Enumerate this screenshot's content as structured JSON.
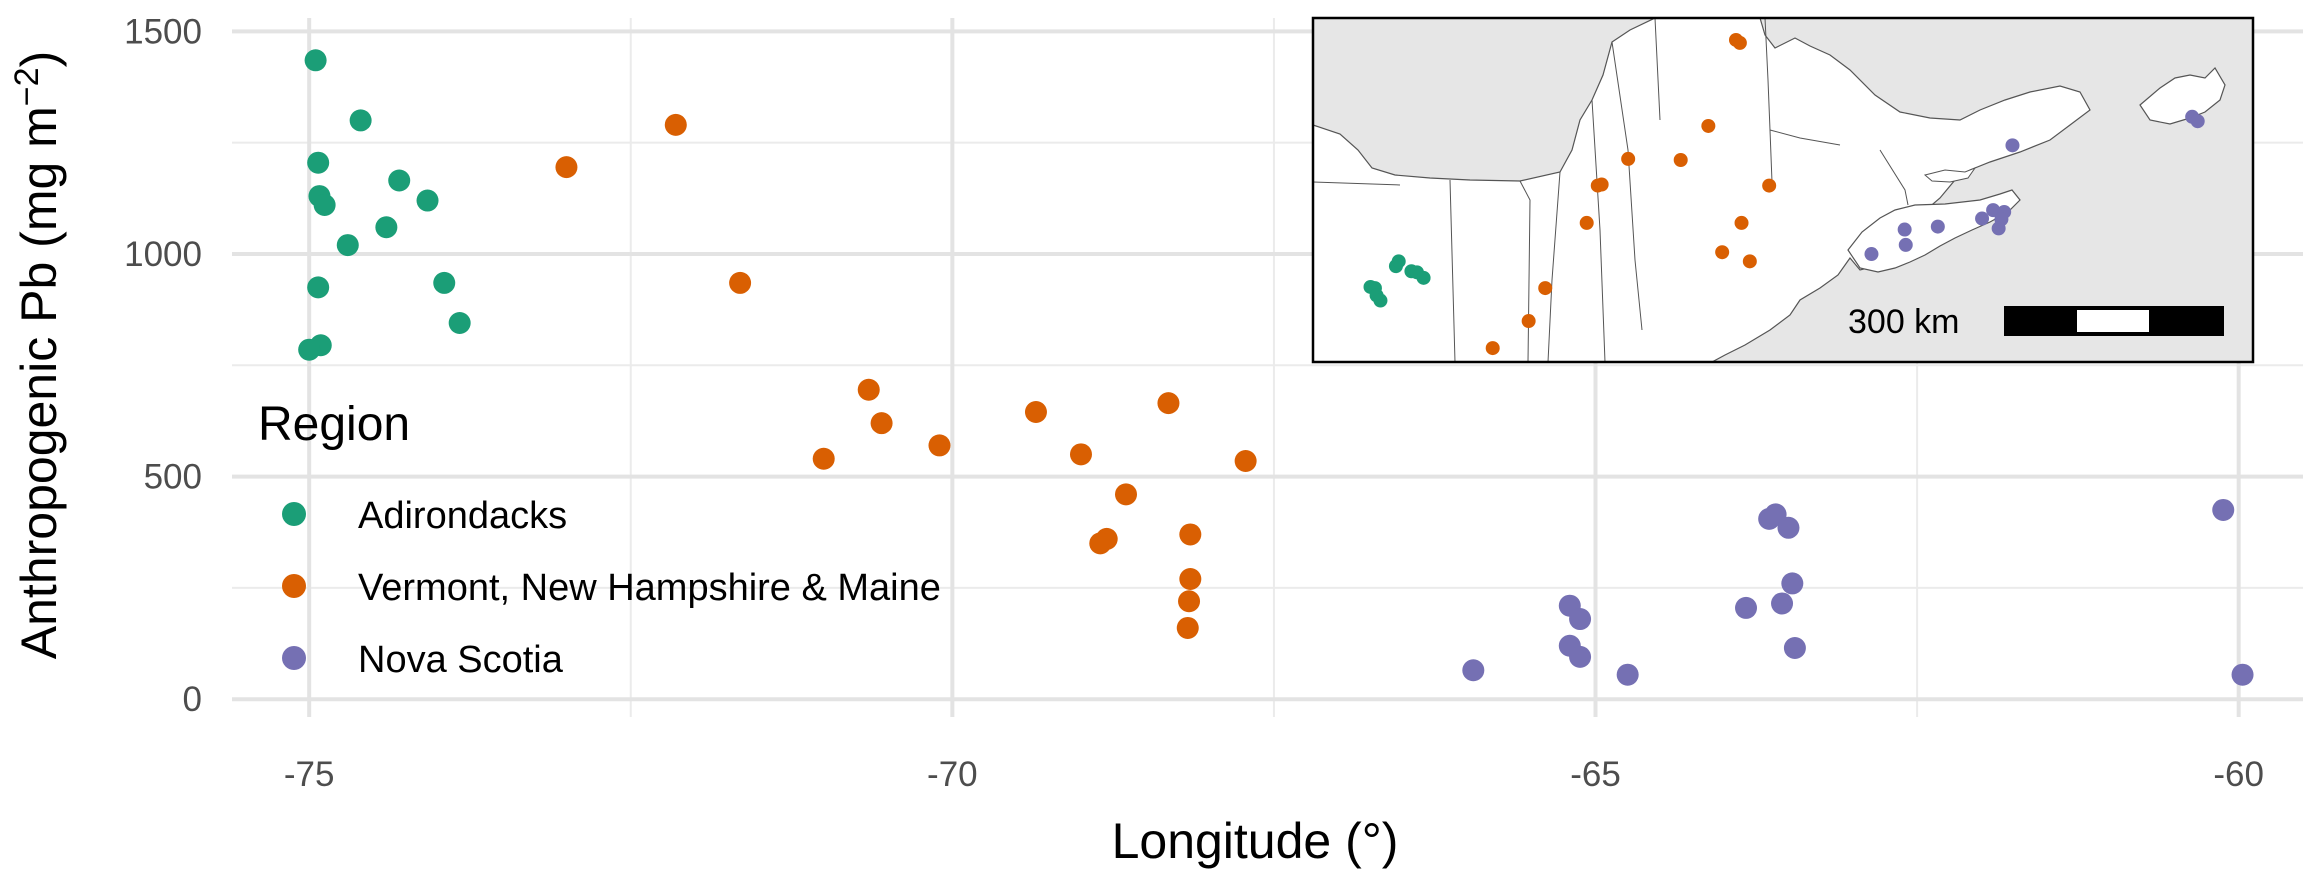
{
  "chart_data": {
    "type": "scatter",
    "title": "",
    "xlabel": "Longitude (°)",
    "ylabel": "Anthropogenic Pb (mg m",
    "ylabel_sup": "−2",
    "ylabel_close": ")",
    "xlim": [
      -75.6,
      -59.5
    ],
    "ylim": [
      -40,
      1530
    ],
    "xticks": [
      -75,
      -70,
      -65,
      -60
    ],
    "yticks": [
      0,
      500,
      1000,
      1500
    ],
    "grid": true,
    "legend": {
      "title": "Region",
      "position": "left-middle"
    },
    "series": [
      {
        "name": "Adirondacks",
        "color": "#1b9e77",
        "points": [
          {
            "x": -74.95,
            "y": 1435
          },
          {
            "x": -74.6,
            "y": 1300
          },
          {
            "x": -74.93,
            "y": 1205
          },
          {
            "x": -74.3,
            "y": 1165
          },
          {
            "x": -74.92,
            "y": 1130
          },
          {
            "x": -74.88,
            "y": 1110
          },
          {
            "x": -74.08,
            "y": 1120
          },
          {
            "x": -74.4,
            "y": 1060
          },
          {
            "x": -74.7,
            "y": 1020
          },
          {
            "x": -74.93,
            "y": 925
          },
          {
            "x": -73.95,
            "y": 935
          },
          {
            "x": -73.83,
            "y": 845
          },
          {
            "x": -74.91,
            "y": 795
          },
          {
            "x": -75.0,
            "y": 785
          }
        ]
      },
      {
        "name": "Vermont, New Hampshire & Maine",
        "color": "#d95f02",
        "points": [
          {
            "x": -72.15,
            "y": 1290
          },
          {
            "x": -73.0,
            "y": 1195
          },
          {
            "x": -71.65,
            "y": 935
          },
          {
            "x": -70.65,
            "y": 695
          },
          {
            "x": -70.55,
            "y": 620
          },
          {
            "x": -70.1,
            "y": 570
          },
          {
            "x": -71.0,
            "y": 540
          },
          {
            "x": -69.35,
            "y": 645
          },
          {
            "x": -69.0,
            "y": 550
          },
          {
            "x": -68.65,
            "y": 460
          },
          {
            "x": -68.32,
            "y": 665
          },
          {
            "x": -67.72,
            "y": 535
          },
          {
            "x": -68.8,
            "y": 360
          },
          {
            "x": -68.85,
            "y": 350
          },
          {
            "x": -68.15,
            "y": 370
          },
          {
            "x": -68.15,
            "y": 270
          },
          {
            "x": -68.16,
            "y": 220
          },
          {
            "x": -68.17,
            "y": 160
          }
        ]
      },
      {
        "name": "Nova Scotia",
        "color": "#7570b3",
        "points": [
          {
            "x": -65.95,
            "y": 65
          },
          {
            "x": -65.2,
            "y": 210
          },
          {
            "x": -65.12,
            "y": 180
          },
          {
            "x": -65.2,
            "y": 120
          },
          {
            "x": -65.12,
            "y": 95
          },
          {
            "x": -64.75,
            "y": 55
          },
          {
            "x": -63.65,
            "y": 405
          },
          {
            "x": -63.6,
            "y": 415
          },
          {
            "x": -63.5,
            "y": 385
          },
          {
            "x": -63.83,
            "y": 205
          },
          {
            "x": -63.55,
            "y": 215
          },
          {
            "x": -63.47,
            "y": 260
          },
          {
            "x": -63.45,
            "y": 115
          },
          {
            "x": -60.12,
            "y": 425
          },
          {
            "x": -59.97,
            "y": 55
          }
        ]
      }
    ],
    "inset": {
      "type": "map",
      "scale_label": "300 km",
      "points": [
        {
          "lon": -74.96,
          "lat": 44.85,
          "series": 0
        },
        {
          "lon": -74.88,
          "lat": 44.82,
          "series": 0
        },
        {
          "lon": -74.85,
          "lat": 44.62,
          "series": 0
        },
        {
          "lon": -74.78,
          "lat": 44.48,
          "series": 0
        },
        {
          "lon": -74.5,
          "lat": 45.42,
          "series": 0
        },
        {
          "lon": -74.45,
          "lat": 45.55,
          "series": 0
        },
        {
          "lon": -74.22,
          "lat": 45.28,
          "series": 0
        },
        {
          "lon": -74.12,
          "lat": 45.25,
          "series": 0
        },
        {
          "lon": -74.0,
          "lat": 45.1,
          "series": 0
        },
        {
          "lon": -72.75,
          "lat": 43.18,
          "series": 1
        },
        {
          "lon": -72.1,
          "lat": 43.92,
          "series": 1
        },
        {
          "lon": -71.8,
          "lat": 44.82,
          "series": 1
        },
        {
          "lon": -71.05,
          "lat": 46.6,
          "series": 1
        },
        {
          "lon": -70.85,
          "lat": 47.62,
          "series": 1
        },
        {
          "lon": -70.78,
          "lat": 47.65,
          "series": 1
        },
        {
          "lon": -70.3,
          "lat": 48.35,
          "series": 1
        },
        {
          "lon": -69.35,
          "lat": 48.32,
          "series": 1
        },
        {
          "lon": -68.85,
          "lat": 49.25,
          "series": 1
        },
        {
          "lon": -68.35,
          "lat": 51.6,
          "series": 1
        },
        {
          "lon": -68.28,
          "lat": 51.52,
          "series": 1
        },
        {
          "lon": -68.6,
          "lat": 45.8,
          "series": 1
        },
        {
          "lon": -68.25,
          "lat": 46.6,
          "series": 1
        },
        {
          "lon": -67.75,
          "lat": 47.62,
          "series": 1
        },
        {
          "lon": -68.1,
          "lat": 45.55,
          "series": 1
        },
        {
          "lon": -65.9,
          "lat": 45.75,
          "series": 2
        },
        {
          "lon": -65.3,
          "lat": 46.42,
          "series": 2
        },
        {
          "lon": -65.28,
          "lat": 46.0,
          "series": 2
        },
        {
          "lon": -64.7,
          "lat": 46.5,
          "series": 2
        },
        {
          "lon": -63.9,
          "lat": 46.72,
          "series": 2
        },
        {
          "lon": -63.7,
          "lat": 46.95,
          "series": 2
        },
        {
          "lon": -63.6,
          "lat": 46.45,
          "series": 2
        },
        {
          "lon": -63.5,
          "lat": 46.9,
          "series": 2
        },
        {
          "lon": -63.55,
          "lat": 46.7,
          "series": 2
        },
        {
          "lon": -63.35,
          "lat": 48.72,
          "series": 2
        },
        {
          "lon": -60.1,
          "lat": 49.5,
          "series": 2
        },
        {
          "lon": -60.0,
          "lat": 49.38,
          "series": 2
        }
      ]
    }
  }
}
